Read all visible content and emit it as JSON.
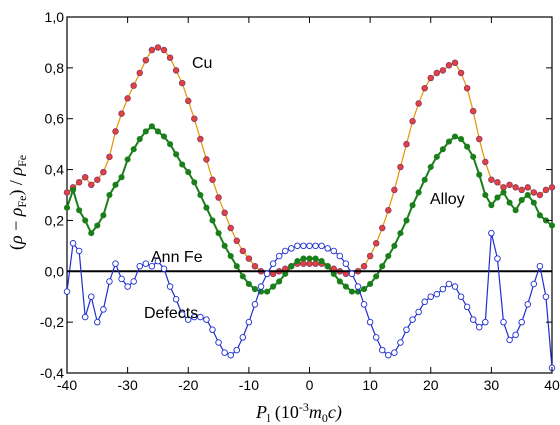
{
  "chart_data": {
    "type": "line",
    "xlim": [
      -40,
      40
    ],
    "ylim": [
      -0.4,
      1.0
    ],
    "x_ticks": [
      "-40",
      "-30",
      "-20",
      "-10",
      "0",
      "10",
      "20",
      "30",
      "40"
    ],
    "y_ticks": [
      "-0,4",
      "-0,2",
      "0,0",
      "0,2",
      "0,4",
      "0,6",
      "0,8",
      "1,0"
    ],
    "xlabel": {
      "main": "P",
      "sub": "l",
      "paren_open": " (10",
      "exp": "-3",
      "m": "m",
      "m_sub": "0",
      "tail": "c)"
    },
    "ylabel": {
      "paren_open": "(",
      "rho": "ρ",
      "minus": " − ",
      "rho2": "ρ",
      "fe_sub": "Fe",
      "mid": ") / ",
      "rho3": "ρ",
      "fe_sub2": "Fe"
    },
    "grid": false,
    "reference_line_y": 0.0,
    "annotations": [
      "Cu",
      "Alloy",
      "Ann Fe",
      "Defects"
    ],
    "series": [
      {
        "name": "Cu",
        "line_color": "#e69500",
        "marker_fill": "#e8413c",
        "marker_stroke": "#8a3b6a",
        "marker": "circle",
        "points": [
          [
            -40,
            0.31
          ],
          [
            -39,
            0.33
          ],
          [
            -38,
            0.35
          ],
          [
            -37,
            0.37
          ],
          [
            -36,
            0.34
          ],
          [
            -35,
            0.36
          ],
          [
            -34,
            0.39
          ],
          [
            -33,
            0.45
          ],
          [
            -32,
            0.55
          ],
          [
            -31,
            0.62
          ],
          [
            -30,
            0.68
          ],
          [
            -29,
            0.73
          ],
          [
            -28,
            0.78
          ],
          [
            -27,
            0.83
          ],
          [
            -26,
            0.87
          ],
          [
            -25,
            0.88
          ],
          [
            -24,
            0.87
          ],
          [
            -23,
            0.84
          ],
          [
            -22,
            0.79
          ],
          [
            -21,
            0.74
          ],
          [
            -20,
            0.67
          ],
          [
            -19,
            0.6
          ],
          [
            -18,
            0.52
          ],
          [
            -17,
            0.44
          ],
          [
            -16,
            0.36
          ],
          [
            -15,
            0.29
          ],
          [
            -14,
            0.23
          ],
          [
            -13,
            0.17
          ],
          [
            -12,
            0.12
          ],
          [
            -11,
            0.08
          ],
          [
            -10,
            0.05
          ],
          [
            -9,
            0.02
          ],
          [
            -8,
            0.0
          ],
          [
            -7,
            -0.01
          ],
          [
            -6,
            -0.01
          ],
          [
            -5,
            0.0
          ],
          [
            -4,
            0.01
          ],
          [
            -3,
            0.02
          ],
          [
            -2,
            0.03
          ],
          [
            -1,
            0.03
          ],
          [
            0,
            0.03
          ],
          [
            1,
            0.03
          ],
          [
            2,
            0.03
          ],
          [
            3,
            0.02
          ],
          [
            4,
            0.01
          ],
          [
            5,
            0.0
          ],
          [
            6,
            -0.01
          ],
          [
            7,
            -0.01
          ],
          [
            8,
            0.0
          ],
          [
            9,
            0.02
          ],
          [
            10,
            0.06
          ],
          [
            11,
            0.11
          ],
          [
            12,
            0.17
          ],
          [
            13,
            0.24
          ],
          [
            14,
            0.32
          ],
          [
            15,
            0.41
          ],
          [
            16,
            0.5
          ],
          [
            17,
            0.59
          ],
          [
            18,
            0.66
          ],
          [
            19,
            0.72
          ],
          [
            20,
            0.76
          ],
          [
            21,
            0.78
          ],
          [
            22,
            0.79
          ],
          [
            23,
            0.81
          ],
          [
            24,
            0.82
          ],
          [
            25,
            0.78
          ],
          [
            26,
            0.72
          ],
          [
            27,
            0.63
          ],
          [
            28,
            0.52
          ],
          [
            29,
            0.43
          ],
          [
            30,
            0.36
          ],
          [
            31,
            0.35
          ],
          [
            32,
            0.33
          ],
          [
            33,
            0.34
          ],
          [
            34,
            0.33
          ],
          [
            35,
            0.32
          ],
          [
            36,
            0.33
          ],
          [
            37,
            0.31
          ],
          [
            38,
            0.3
          ],
          [
            39,
            0.32
          ],
          [
            40,
            0.33
          ]
        ]
      },
      {
        "name": "Alloy",
        "line_color": "#1a7f1a",
        "marker_fill": "#1a7f1a",
        "marker_stroke": "#1a7f1a",
        "marker": "dot",
        "points": [
          [
            -40,
            0.25
          ],
          [
            -39,
            0.32
          ],
          [
            -38,
            0.24
          ],
          [
            -37,
            0.2
          ],
          [
            -36,
            0.15
          ],
          [
            -35,
            0.18
          ],
          [
            -34,
            0.22
          ],
          [
            -33,
            0.3
          ],
          [
            -32,
            0.34
          ],
          [
            -31,
            0.37
          ],
          [
            -30,
            0.44
          ],
          [
            -29,
            0.48
          ],
          [
            -28,
            0.52
          ],
          [
            -27,
            0.55
          ],
          [
            -26,
            0.57
          ],
          [
            -25,
            0.55
          ],
          [
            -24,
            0.53
          ],
          [
            -23,
            0.5
          ],
          [
            -22,
            0.46
          ],
          [
            -21,
            0.42
          ],
          [
            -20,
            0.39
          ],
          [
            -19,
            0.35
          ],
          [
            -18,
            0.3
          ],
          [
            -17,
            0.25
          ],
          [
            -16,
            0.2
          ],
          [
            -15,
            0.15
          ],
          [
            -14,
            0.1
          ],
          [
            -13,
            0.06
          ],
          [
            -12,
            0.02
          ],
          [
            -11,
            -0.02
          ],
          [
            -10,
            -0.05
          ],
          [
            -9,
            -0.07
          ],
          [
            -8,
            -0.08
          ],
          [
            -7,
            -0.08
          ],
          [
            -6,
            -0.06
          ],
          [
            -5,
            -0.04
          ],
          [
            -4,
            -0.01
          ],
          [
            -3,
            0.02
          ],
          [
            -2,
            0.04
          ],
          [
            -1,
            0.05
          ],
          [
            0,
            0.05
          ],
          [
            1,
            0.05
          ],
          [
            2,
            0.04
          ],
          [
            3,
            0.02
          ],
          [
            4,
            -0.01
          ],
          [
            5,
            -0.04
          ],
          [
            6,
            -0.06
          ],
          [
            7,
            -0.08
          ],
          [
            8,
            -0.08
          ],
          [
            9,
            -0.07
          ],
          [
            10,
            -0.05
          ],
          [
            11,
            -0.02
          ],
          [
            12,
            0.02
          ],
          [
            13,
            0.06
          ],
          [
            14,
            0.1
          ],
          [
            15,
            0.15
          ],
          [
            16,
            0.2
          ],
          [
            17,
            0.26
          ],
          [
            18,
            0.31
          ],
          [
            19,
            0.36
          ],
          [
            20,
            0.41
          ],
          [
            21,
            0.45
          ],
          [
            22,
            0.48
          ],
          [
            23,
            0.51
          ],
          [
            24,
            0.53
          ],
          [
            25,
            0.52
          ],
          [
            26,
            0.49
          ],
          [
            27,
            0.45
          ],
          [
            28,
            0.38
          ],
          [
            29,
            0.3
          ],
          [
            30,
            0.26
          ],
          [
            31,
            0.29
          ],
          [
            32,
            0.31
          ],
          [
            33,
            0.27
          ],
          [
            34,
            0.24
          ],
          [
            35,
            0.28
          ],
          [
            36,
            0.3
          ],
          [
            37,
            0.27
          ],
          [
            38,
            0.22
          ],
          [
            39,
            0.2
          ],
          [
            40,
            0.18
          ]
        ]
      },
      {
        "name": "Ann Fe",
        "line_color": "#000000",
        "marker": "none",
        "points": [
          [
            -40,
            0.0
          ],
          [
            40,
            0.0
          ]
        ]
      },
      {
        "name": "Defects",
        "line_color": "#1f2fd0",
        "marker_fill": "#ffffff",
        "marker_stroke": "#1f2fd0",
        "marker": "circle",
        "points": [
          [
            -40,
            -0.08
          ],
          [
            -39,
            0.11
          ],
          [
            -38,
            0.08
          ],
          [
            -37,
            -0.18
          ],
          [
            -36,
            -0.1
          ],
          [
            -35,
            -0.2
          ],
          [
            -34,
            -0.15
          ],
          [
            -33,
            -0.04
          ],
          [
            -32,
            0.03
          ],
          [
            -31,
            -0.03
          ],
          [
            -30,
            -0.06
          ],
          [
            -29,
            -0.04
          ],
          [
            -28,
            0.02
          ],
          [
            -27,
            0.03
          ],
          [
            -26,
            0.02
          ],
          [
            -25,
            0.04
          ],
          [
            -24,
            0.01
          ],
          [
            -23,
            -0.06
          ],
          [
            -22,
            -0.11
          ],
          [
            -21,
            -0.17
          ],
          [
            -20,
            -0.19
          ],
          [
            -19,
            -0.18
          ],
          [
            -18,
            -0.18
          ],
          [
            -17,
            -0.19
          ],
          [
            -16,
            -0.23
          ],
          [
            -15,
            -0.28
          ],
          [
            -14,
            -0.32
          ],
          [
            -13,
            -0.33
          ],
          [
            -12,
            -0.31
          ],
          [
            -11,
            -0.26
          ],
          [
            -10,
            -0.2
          ],
          [
            -9,
            -0.13
          ],
          [
            -8,
            -0.06
          ],
          [
            -7,
            -0.01
          ],
          [
            -6,
            0.03
          ],
          [
            -5,
            0.06
          ],
          [
            -4,
            0.08
          ],
          [
            -3,
            0.09
          ],
          [
            -2,
            0.1
          ],
          [
            -1,
            0.1
          ],
          [
            0,
            0.1
          ],
          [
            1,
            0.1
          ],
          [
            2,
            0.1
          ],
          [
            3,
            0.09
          ],
          [
            4,
            0.08
          ],
          [
            5,
            0.06
          ],
          [
            6,
            0.03
          ],
          [
            7,
            -0.01
          ],
          [
            8,
            -0.06
          ],
          [
            9,
            -0.13
          ],
          [
            10,
            -0.2
          ],
          [
            11,
            -0.26
          ],
          [
            12,
            -0.31
          ],
          [
            13,
            -0.33
          ],
          [
            14,
            -0.32
          ],
          [
            15,
            -0.28
          ],
          [
            16,
            -0.23
          ],
          [
            17,
            -0.19
          ],
          [
            18,
            -0.16
          ],
          [
            19,
            -0.12
          ],
          [
            20,
            -0.1
          ],
          [
            21,
            -0.09
          ],
          [
            22,
            -0.07
          ],
          [
            23,
            -0.05
          ],
          [
            24,
            -0.06
          ],
          [
            25,
            -0.1
          ],
          [
            26,
            -0.14
          ],
          [
            27,
            -0.19
          ],
          [
            28,
            -0.22
          ],
          [
            29,
            -0.2
          ],
          [
            30,
            0.15
          ],
          [
            31,
            0.05
          ],
          [
            32,
            -0.2
          ],
          [
            33,
            -0.27
          ],
          [
            34,
            -0.25
          ],
          [
            35,
            -0.2
          ],
          [
            36,
            -0.13
          ],
          [
            37,
            -0.05
          ],
          [
            38,
            0.02
          ],
          [
            39,
            -0.1
          ],
          [
            40,
            -0.38
          ]
        ]
      }
    ]
  }
}
